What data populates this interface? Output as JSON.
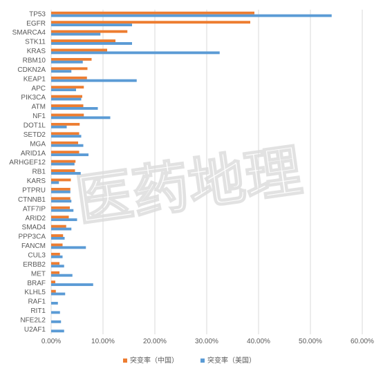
{
  "watermark": "医药地理",
  "chart_data": {
    "type": "bar",
    "orientation": "horizontal",
    "title": "",
    "xlabel": "",
    "ylabel": "",
    "xlim": [
      0,
      60
    ],
    "x_ticks": [
      "0.00%",
      "10.00%",
      "20.00%",
      "30.00%",
      "40.00%",
      "50.00%",
      "60.00%"
    ],
    "grid": "vertical",
    "legend_position": "bottom",
    "categories": [
      "TP53",
      "EGFR",
      "SMARCA4",
      "STK11",
      "KRAS",
      "RBM10",
      "CDKN2A",
      "KEAP1",
      "APC",
      "PIK3CA",
      "ATM",
      "NF1",
      "DOT1L",
      "SETD2",
      "MGA",
      "ARID1A",
      "ARHGEF12",
      "RB1",
      "KARS",
      "PTPRU",
      "CTNNB1",
      "ATF7IP",
      "ARID2",
      "SMAD4",
      "PPP3CA",
      "FANCM",
      "CUL3",
      "ERBB2",
      "MET",
      "BRAF",
      "KLHL5",
      "RAF1",
      "RIT1",
      "NFE2L2",
      "U2AF1"
    ],
    "series": [
      {
        "name": "突变率（中国）",
        "color": "#ED7D31",
        "values": [
          39.2,
          38.4,
          14.7,
          12.4,
          10.8,
          7.8,
          7.0,
          6.9,
          6.3,
          6.0,
          6.2,
          6.3,
          5.5,
          5.4,
          5.2,
          5.4,
          4.7,
          4.6,
          3.8,
          3.7,
          3.7,
          3.6,
          3.4,
          2.9,
          2.3,
          2.2,
          1.7,
          1.6,
          1.6,
          0.8,
          0.9,
          0,
          0,
          0,
          0
        ]
      },
      {
        "name": "突变率（美国）",
        "color": "#5B9BD5",
        "values": [
          54.1,
          15.6,
          9.5,
          15.6,
          32.5,
          6.1,
          3.9,
          16.5,
          4.8,
          5.8,
          9.0,
          11.4,
          3.0,
          5.8,
          6.2,
          7.2,
          4.5,
          5.7,
          1.5,
          3.7,
          3.9,
          4.3,
          5.0,
          3.9,
          2.6,
          6.7,
          2.2,
          2.5,
          4.1,
          8.1,
          2.7,
          1.3,
          1.7,
          1.9,
          2.5
        ]
      }
    ]
  }
}
